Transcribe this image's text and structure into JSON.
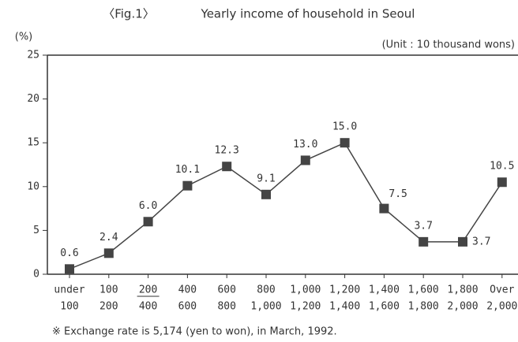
{
  "chart_data": {
    "type": "line",
    "title": "〈Fig.1〉",
    "subtitle": "Yearly income of household in Seoul",
    "y_label": "(%)",
    "unit_note": "(Unit : 10 thousand wons)",
    "footnote": "※  Exchange rate is 5,174 (yen to won), in March, 1992.",
    "categories": [
      [
        "under",
        "100"
      ],
      [
        "100",
        "200"
      ],
      [
        "200",
        "400"
      ],
      [
        "400",
        "600"
      ],
      [
        "600",
        "800"
      ],
      [
        "800",
        "1,000"
      ],
      [
        "1,000",
        "1,200"
      ],
      [
        "1,200",
        "1,400"
      ],
      [
        "1,400",
        "1,600"
      ],
      [
        "1,600",
        "1,800"
      ],
      [
        "1,800",
        "2,000"
      ],
      [
        "Over",
        "2,000"
      ]
    ],
    "values": [
      0.6,
      2.4,
      6.0,
      10.1,
      12.3,
      9.1,
      13.0,
      15.0,
      7.5,
      3.7,
      3.7,
      10.5
    ],
    "value_labels": [
      "0.6",
      "2.4",
      "6.0",
      "10.1",
      "12.3",
      "9.1",
      "13.0",
      "15.0",
      "7.5",
      "3.7",
      "3.7",
      "10.5"
    ],
    "color": "#444444",
    "ylim": [
      0,
      25
    ],
    "yticks": [
      0,
      5,
      10,
      15,
      20,
      25
    ]
  }
}
